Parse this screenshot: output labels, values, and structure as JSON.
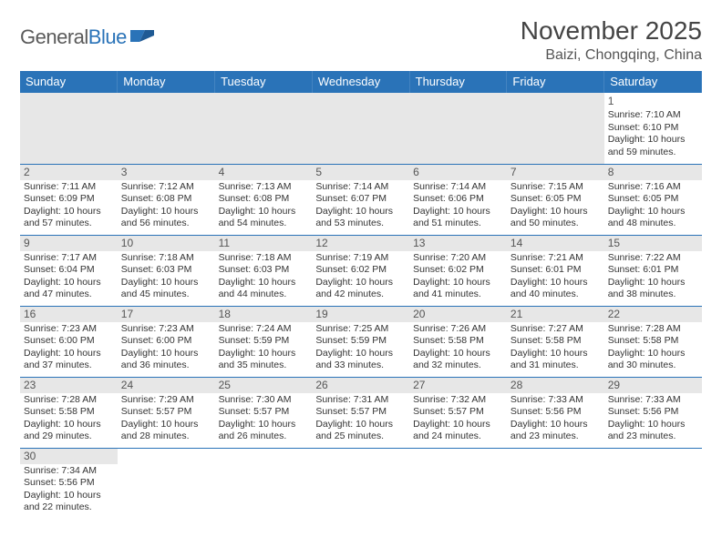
{
  "logo": {
    "general": "General",
    "blue": "Blue"
  },
  "title": "November 2025",
  "location": "Baizi, Chongqing, China",
  "colors": {
    "header_bg": "#2a73b8",
    "header_fg": "#ffffff",
    "rule": "#2a73b8",
    "gray": "#e7e7e7",
    "text": "#333333",
    "logo_gray": "#5a5a5a",
    "logo_blue": "#2a73b8"
  },
  "day_headers": [
    "Sunday",
    "Monday",
    "Tuesday",
    "Wednesday",
    "Thursday",
    "Friday",
    "Saturday"
  ],
  "weeks": [
    [
      null,
      null,
      null,
      null,
      null,
      null,
      {
        "n": "1",
        "sr": "7:10 AM",
        "ss": "6:10 PM",
        "dl": "10 hours and 59 minutes."
      }
    ],
    [
      {
        "n": "2",
        "sr": "7:11 AM",
        "ss": "6:09 PM",
        "dl": "10 hours and 57 minutes."
      },
      {
        "n": "3",
        "sr": "7:12 AM",
        "ss": "6:08 PM",
        "dl": "10 hours and 56 minutes."
      },
      {
        "n": "4",
        "sr": "7:13 AM",
        "ss": "6:08 PM",
        "dl": "10 hours and 54 minutes."
      },
      {
        "n": "5",
        "sr": "7:14 AM",
        "ss": "6:07 PM",
        "dl": "10 hours and 53 minutes."
      },
      {
        "n": "6",
        "sr": "7:14 AM",
        "ss": "6:06 PM",
        "dl": "10 hours and 51 minutes."
      },
      {
        "n": "7",
        "sr": "7:15 AM",
        "ss": "6:05 PM",
        "dl": "10 hours and 50 minutes."
      },
      {
        "n": "8",
        "sr": "7:16 AM",
        "ss": "6:05 PM",
        "dl": "10 hours and 48 minutes."
      }
    ],
    [
      {
        "n": "9",
        "sr": "7:17 AM",
        "ss": "6:04 PM",
        "dl": "10 hours and 47 minutes."
      },
      {
        "n": "10",
        "sr": "7:18 AM",
        "ss": "6:03 PM",
        "dl": "10 hours and 45 minutes."
      },
      {
        "n": "11",
        "sr": "7:18 AM",
        "ss": "6:03 PM",
        "dl": "10 hours and 44 minutes."
      },
      {
        "n": "12",
        "sr": "7:19 AM",
        "ss": "6:02 PM",
        "dl": "10 hours and 42 minutes."
      },
      {
        "n": "13",
        "sr": "7:20 AM",
        "ss": "6:02 PM",
        "dl": "10 hours and 41 minutes."
      },
      {
        "n": "14",
        "sr": "7:21 AM",
        "ss": "6:01 PM",
        "dl": "10 hours and 40 minutes."
      },
      {
        "n": "15",
        "sr": "7:22 AM",
        "ss": "6:01 PM",
        "dl": "10 hours and 38 minutes."
      }
    ],
    [
      {
        "n": "16",
        "sr": "7:23 AM",
        "ss": "6:00 PM",
        "dl": "10 hours and 37 minutes."
      },
      {
        "n": "17",
        "sr": "7:23 AM",
        "ss": "6:00 PM",
        "dl": "10 hours and 36 minutes."
      },
      {
        "n": "18",
        "sr": "7:24 AM",
        "ss": "5:59 PM",
        "dl": "10 hours and 35 minutes."
      },
      {
        "n": "19",
        "sr": "7:25 AM",
        "ss": "5:59 PM",
        "dl": "10 hours and 33 minutes."
      },
      {
        "n": "20",
        "sr": "7:26 AM",
        "ss": "5:58 PM",
        "dl": "10 hours and 32 minutes."
      },
      {
        "n": "21",
        "sr": "7:27 AM",
        "ss": "5:58 PM",
        "dl": "10 hours and 31 minutes."
      },
      {
        "n": "22",
        "sr": "7:28 AM",
        "ss": "5:58 PM",
        "dl": "10 hours and 30 minutes."
      }
    ],
    [
      {
        "n": "23",
        "sr": "7:28 AM",
        "ss": "5:58 PM",
        "dl": "10 hours and 29 minutes."
      },
      {
        "n": "24",
        "sr": "7:29 AM",
        "ss": "5:57 PM",
        "dl": "10 hours and 28 minutes."
      },
      {
        "n": "25",
        "sr": "7:30 AM",
        "ss": "5:57 PM",
        "dl": "10 hours and 26 minutes."
      },
      {
        "n": "26",
        "sr": "7:31 AM",
        "ss": "5:57 PM",
        "dl": "10 hours and 25 minutes."
      },
      {
        "n": "27",
        "sr": "7:32 AM",
        "ss": "5:57 PM",
        "dl": "10 hours and 24 minutes."
      },
      {
        "n": "28",
        "sr": "7:33 AM",
        "ss": "5:56 PM",
        "dl": "10 hours and 23 minutes."
      },
      {
        "n": "29",
        "sr": "7:33 AM",
        "ss": "5:56 PM",
        "dl": "10 hours and 23 minutes."
      }
    ],
    [
      {
        "n": "30",
        "sr": "7:34 AM",
        "ss": "5:56 PM",
        "dl": "10 hours and 22 minutes."
      },
      null,
      null,
      null,
      null,
      null,
      null
    ]
  ],
  "labels": {
    "sunrise": "Sunrise: ",
    "sunset": "Sunset: ",
    "daylight": "Daylight: "
  }
}
